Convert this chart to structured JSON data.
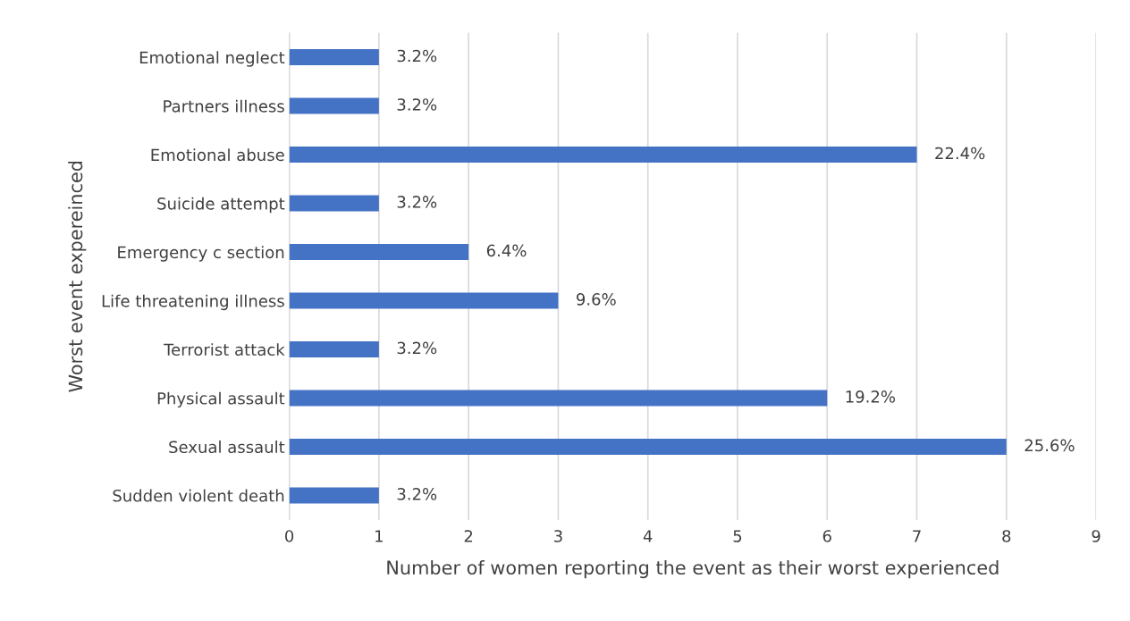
{
  "chart_data": {
    "type": "bar",
    "orientation": "horizontal",
    "categories": [
      "Emotional neglect",
      "Partners illness",
      "Emotional abuse",
      "Suicide attempt",
      "Emergency c section",
      "Life threatening illness",
      "Terrorist attack",
      "Physical assault",
      "Sexual assault",
      "Sudden violent death"
    ],
    "values": [
      1,
      1,
      7,
      1,
      2,
      3,
      1,
      6,
      8,
      1
    ],
    "annotations": [
      {
        "text": "3.2%",
        "x": 1,
        "y": "Emotional neglect"
      },
      {
        "text": "3.2%",
        "x": 1,
        "y": "Partners illness"
      },
      {
        "text": "22.4%",
        "x": 7,
        "y": "Emotional abuse"
      },
      {
        "text": "3.2%",
        "x": 1,
        "y": "Suicide attempt"
      },
      {
        "text": "6.4%",
        "x": 2,
        "y": "Emergency c section"
      },
      {
        "text": "9.6%",
        "x": 3,
        "y": "Life threatening illness"
      },
      {
        "text": "3.2%",
        "x": 1,
        "y": "Terrorist attack"
      },
      {
        "text": "19.2%",
        "x": 6,
        "y": "Physical assault"
      },
      {
        "text": "25.6%",
        "x": 8,
        "y": "Sexual assault"
      },
      {
        "text": "3.2%",
        "x": 1,
        "y": "Sudden violent death"
      }
    ],
    "color": "#4472c4",
    "xlabel": "Number of women reporting the event as their worst experienced",
    "ylabel": "Worst event expereinced",
    "xlim": [
      0,
      9
    ],
    "xticks": [
      0,
      1,
      2,
      3,
      4,
      5,
      6,
      7,
      8,
      9
    ],
    "grid": "x"
  }
}
